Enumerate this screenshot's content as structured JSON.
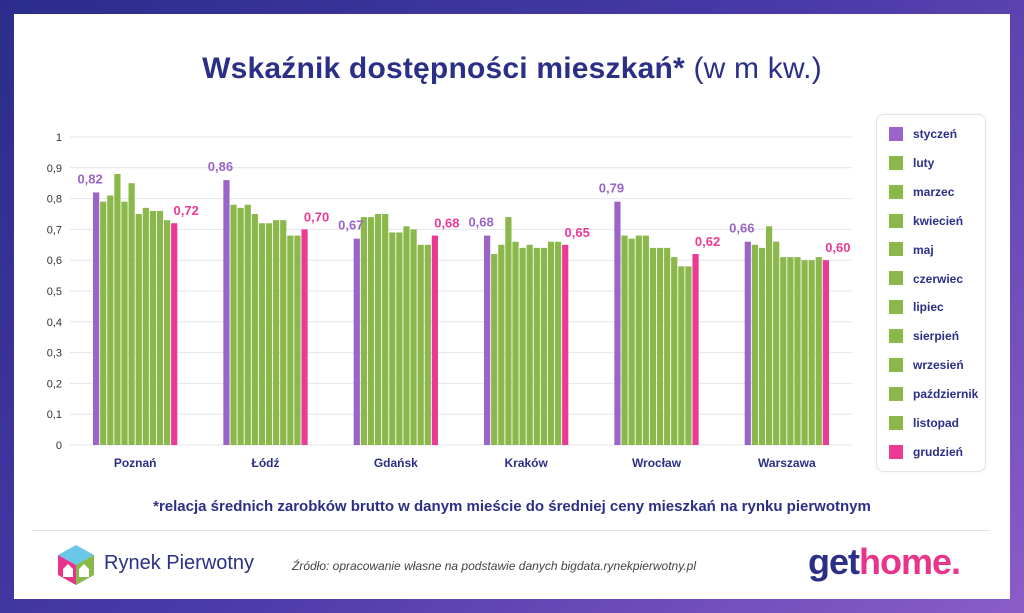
{
  "title": {
    "bold": "Wskaźnik dostępności mieszkań*",
    "light": "(w m kw.)"
  },
  "footnote": "*relacja średnich zarobków brutto w danym mieście do średniej ceny mieszkań na rynku pierwotnym",
  "source": "Źródło: opracowanie własne na podstawie danych bigdata.rynekpierwotny.pl",
  "logo_left": {
    "text": "Rynek Pierwotny"
  },
  "brand": {
    "main": "get",
    "accent": "home."
  },
  "colors": {
    "first": "#9b64c8",
    "middle": "#8ab84a",
    "last": "#ea3a96",
    "text": "#2b2f86",
    "grid": "#e4e4ee"
  },
  "chart_data": {
    "type": "bar",
    "ylim": [
      0,
      1
    ],
    "yticks": [
      "0",
      "0,1",
      "0,2",
      "0,3",
      "0,4",
      "0,5",
      "0,6",
      "0,7",
      "0,8",
      "0,9",
      "1"
    ],
    "grid": true,
    "legend": "right",
    "categories": [
      "Poznań",
      "Łódź",
      "Gdańsk",
      "Kraków",
      "Wrocław",
      "Warszawa"
    ],
    "series": [
      {
        "name": "styczeń",
        "values": [
          0.82,
          0.86,
          0.67,
          0.68,
          0.79,
          0.66
        ]
      },
      {
        "name": "luty",
        "values": [
          0.79,
          0.78,
          0.74,
          0.62,
          0.68,
          0.65
        ]
      },
      {
        "name": "marzec",
        "values": [
          0.81,
          0.77,
          0.74,
          0.65,
          0.67,
          0.64
        ]
      },
      {
        "name": "kwiecień",
        "values": [
          0.88,
          0.78,
          0.75,
          0.74,
          0.68,
          0.71
        ]
      },
      {
        "name": "maj",
        "values": [
          0.79,
          0.75,
          0.75,
          0.66,
          0.68,
          0.66
        ]
      },
      {
        "name": "czerwiec",
        "values": [
          0.85,
          0.72,
          0.69,
          0.64,
          0.64,
          0.61
        ]
      },
      {
        "name": "lipiec",
        "values": [
          0.75,
          0.72,
          0.69,
          0.65,
          0.64,
          0.61
        ]
      },
      {
        "name": "sierpień",
        "values": [
          0.77,
          0.73,
          0.71,
          0.64,
          0.64,
          0.61
        ]
      },
      {
        "name": "wrzesień",
        "values": [
          0.76,
          0.73,
          0.7,
          0.64,
          0.61,
          0.6
        ]
      },
      {
        "name": "październik",
        "values": [
          0.76,
          0.68,
          0.65,
          0.66,
          0.58,
          0.6
        ]
      },
      {
        "name": "listopad",
        "values": [
          0.73,
          0.68,
          0.65,
          0.66,
          0.58,
          0.61
        ]
      },
      {
        "name": "grudzień",
        "values": [
          0.72,
          0.7,
          0.68,
          0.65,
          0.62,
          0.6
        ]
      }
    ],
    "data_labels": {
      "first": [
        "0,82",
        "0,86",
        "0,67",
        "0,68",
        "0,79",
        "0,66"
      ],
      "last": [
        "0,72",
        "0,70",
        "0,68",
        "0,65",
        "0,62",
        "0,60"
      ]
    }
  }
}
